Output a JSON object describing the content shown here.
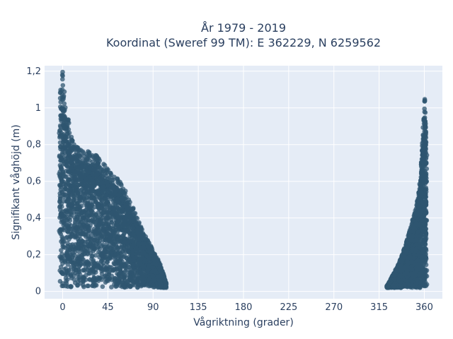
{
  "chart_data": {
    "type": "scatter",
    "title_line1": "År 1979 - 2019",
    "title_line2": "Koordinat (Sweref 99 TM): E 362229, N 6259562",
    "xlabel": "Vågriktning (grader)",
    "ylabel": "Signifikant våghöjd (m)",
    "xlim": [
      -18,
      378
    ],
    "ylim": [
      -0.04,
      1.23
    ],
    "xticks": [
      0,
      45,
      90,
      135,
      180,
      225,
      270,
      315,
      360
    ],
    "xtick_labels": [
      "0",
      "45",
      "90",
      "135",
      "180",
      "225",
      "270",
      "315",
      "360"
    ],
    "yticks": [
      0,
      0.2,
      0.4,
      0.6,
      0.8,
      1.0,
      1.2
    ],
    "ytick_labels": [
      "0",
      "0,2",
      "0,4",
      "0,6",
      "0,8",
      "1",
      "1,2"
    ],
    "grid": true,
    "colors": {
      "marker": "#2f5570",
      "plot_bg": "#e5ecf6",
      "grid": "#ffffff",
      "text": "#2a3f5f"
    },
    "clusters": [
      {
        "name": "",
        "x_range": [
          -3,
          103
        ],
        "upper_envelope": [
          [
            -3,
            0.9
          ],
          [
            -2,
            1.1
          ],
          [
            0,
            1.18
          ],
          [
            2,
            1.05
          ],
          [
            5,
            0.95
          ],
          [
            8,
            0.85
          ],
          [
            12,
            0.78
          ],
          [
            20,
            0.76
          ],
          [
            30,
            0.74
          ],
          [
            35,
            0.72
          ],
          [
            45,
            0.66
          ],
          [
            55,
            0.6
          ],
          [
            62,
            0.55
          ],
          [
            70,
            0.45
          ],
          [
            80,
            0.32
          ],
          [
            90,
            0.22
          ],
          [
            97,
            0.15
          ],
          [
            103,
            0.05
          ]
        ]
      },
      {
        "name": "",
        "x_range": [
          323,
          362
        ],
        "upper_envelope": [
          [
            323,
            0.03
          ],
          [
            330,
            0.1
          ],
          [
            337,
            0.18
          ],
          [
            343,
            0.28
          ],
          [
            348,
            0.38
          ],
          [
            352,
            0.45
          ],
          [
            355,
            0.55
          ],
          [
            357,
            0.7
          ],
          [
            359,
            0.9
          ],
          [
            360,
            1.04
          ],
          [
            361,
            1.02
          ],
          [
            362,
            0.75
          ]
        ]
      }
    ],
    "y_floor": 0.02
  }
}
